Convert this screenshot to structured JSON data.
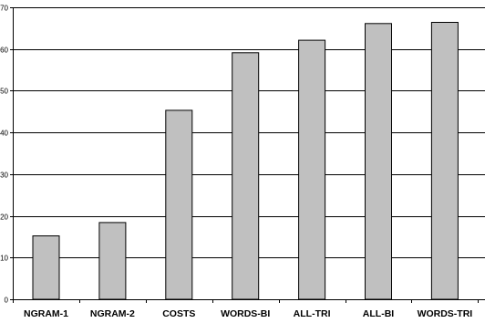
{
  "chart_data": {
    "type": "bar",
    "title": "",
    "xlabel": "",
    "ylabel": "",
    "categories": [
      "NGRAM-1",
      "NGRAM-2",
      "COSTS",
      "WORDS-BI",
      "ALL-TRI",
      "ALL-BI",
      "WORDS-TRI"
    ],
    "values": [
      15.2,
      18.4,
      45.3,
      59.1,
      62.1,
      66.1,
      66.4
    ],
    "ylim": [
      0,
      70
    ],
    "yticks": [
      "0",
      "10",
      "20",
      "30",
      "40",
      "50",
      "60",
      "70"
    ],
    "grid": true,
    "legend": "none",
    "colors": {
      "bar_fill": "#c0c0c0",
      "bar_stroke": "#000000",
      "grid": "#000000",
      "axis": "#000000"
    }
  }
}
